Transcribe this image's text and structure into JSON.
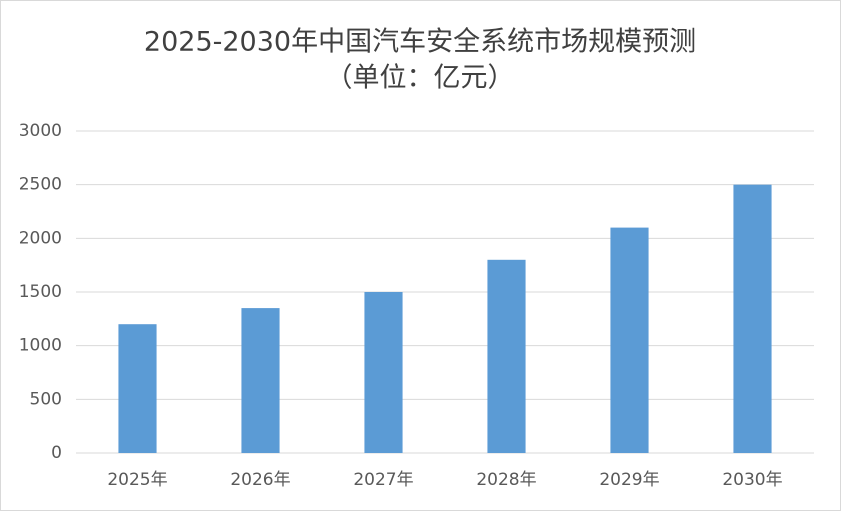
{
  "chart_data": {
    "type": "bar",
    "title": "2025-2030年中国汽车安全系统市场规模预测",
    "subtitle": "（单位：亿元）",
    "categories": [
      "2025年",
      "2026年",
      "2027年",
      "2028年",
      "2029年",
      "2030年"
    ],
    "values": [
      1200,
      1350,
      1500,
      1800,
      2100,
      2500
    ],
    "color": "#5b9bd5",
    "ylim": [
      0,
      3000
    ],
    "yticks": [
      0,
      500,
      1000,
      1500,
      2000,
      2500,
      3000
    ],
    "grid": true
  }
}
